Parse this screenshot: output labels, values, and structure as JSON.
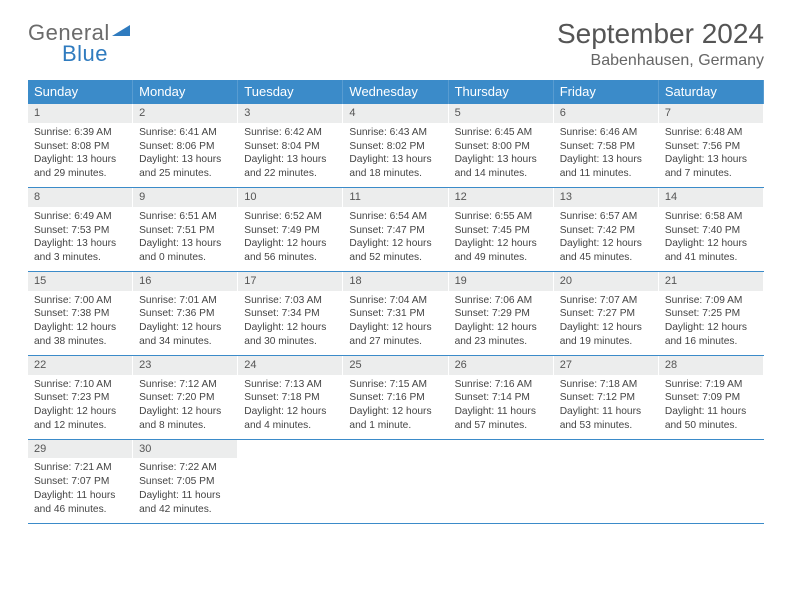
{
  "logo": {
    "text1": "General",
    "text2": "Blue",
    "triangle_color": "#2f7bbf"
  },
  "header": {
    "month_title": "September 2024",
    "location": "Babenhausen, Germany"
  },
  "colors": {
    "header_bg": "#3b8bc9",
    "header_text": "#ffffff",
    "daynum_bg": "#eceded",
    "row_border": "#3b8bc9",
    "body_text": "#444444"
  },
  "day_names": [
    "Sunday",
    "Monday",
    "Tuesday",
    "Wednesday",
    "Thursday",
    "Friday",
    "Saturday"
  ],
  "weeks": [
    [
      {
        "n": "1",
        "sr": "Sunrise: 6:39 AM",
        "ss": "Sunset: 8:08 PM",
        "d1": "Daylight: 13 hours",
        "d2": "and 29 minutes."
      },
      {
        "n": "2",
        "sr": "Sunrise: 6:41 AM",
        "ss": "Sunset: 8:06 PM",
        "d1": "Daylight: 13 hours",
        "d2": "and 25 minutes."
      },
      {
        "n": "3",
        "sr": "Sunrise: 6:42 AM",
        "ss": "Sunset: 8:04 PM",
        "d1": "Daylight: 13 hours",
        "d2": "and 22 minutes."
      },
      {
        "n": "4",
        "sr": "Sunrise: 6:43 AM",
        "ss": "Sunset: 8:02 PM",
        "d1": "Daylight: 13 hours",
        "d2": "and 18 minutes."
      },
      {
        "n": "5",
        "sr": "Sunrise: 6:45 AM",
        "ss": "Sunset: 8:00 PM",
        "d1": "Daylight: 13 hours",
        "d2": "and 14 minutes."
      },
      {
        "n": "6",
        "sr": "Sunrise: 6:46 AM",
        "ss": "Sunset: 7:58 PM",
        "d1": "Daylight: 13 hours",
        "d2": "and 11 minutes."
      },
      {
        "n": "7",
        "sr": "Sunrise: 6:48 AM",
        "ss": "Sunset: 7:56 PM",
        "d1": "Daylight: 13 hours",
        "d2": "and 7 minutes."
      }
    ],
    [
      {
        "n": "8",
        "sr": "Sunrise: 6:49 AM",
        "ss": "Sunset: 7:53 PM",
        "d1": "Daylight: 13 hours",
        "d2": "and 3 minutes."
      },
      {
        "n": "9",
        "sr": "Sunrise: 6:51 AM",
        "ss": "Sunset: 7:51 PM",
        "d1": "Daylight: 13 hours",
        "d2": "and 0 minutes."
      },
      {
        "n": "10",
        "sr": "Sunrise: 6:52 AM",
        "ss": "Sunset: 7:49 PM",
        "d1": "Daylight: 12 hours",
        "d2": "and 56 minutes."
      },
      {
        "n": "11",
        "sr": "Sunrise: 6:54 AM",
        "ss": "Sunset: 7:47 PM",
        "d1": "Daylight: 12 hours",
        "d2": "and 52 minutes."
      },
      {
        "n": "12",
        "sr": "Sunrise: 6:55 AM",
        "ss": "Sunset: 7:45 PM",
        "d1": "Daylight: 12 hours",
        "d2": "and 49 minutes."
      },
      {
        "n": "13",
        "sr": "Sunrise: 6:57 AM",
        "ss": "Sunset: 7:42 PM",
        "d1": "Daylight: 12 hours",
        "d2": "and 45 minutes."
      },
      {
        "n": "14",
        "sr": "Sunrise: 6:58 AM",
        "ss": "Sunset: 7:40 PM",
        "d1": "Daylight: 12 hours",
        "d2": "and 41 minutes."
      }
    ],
    [
      {
        "n": "15",
        "sr": "Sunrise: 7:00 AM",
        "ss": "Sunset: 7:38 PM",
        "d1": "Daylight: 12 hours",
        "d2": "and 38 minutes."
      },
      {
        "n": "16",
        "sr": "Sunrise: 7:01 AM",
        "ss": "Sunset: 7:36 PM",
        "d1": "Daylight: 12 hours",
        "d2": "and 34 minutes."
      },
      {
        "n": "17",
        "sr": "Sunrise: 7:03 AM",
        "ss": "Sunset: 7:34 PM",
        "d1": "Daylight: 12 hours",
        "d2": "and 30 minutes."
      },
      {
        "n": "18",
        "sr": "Sunrise: 7:04 AM",
        "ss": "Sunset: 7:31 PM",
        "d1": "Daylight: 12 hours",
        "d2": "and 27 minutes."
      },
      {
        "n": "19",
        "sr": "Sunrise: 7:06 AM",
        "ss": "Sunset: 7:29 PM",
        "d1": "Daylight: 12 hours",
        "d2": "and 23 minutes."
      },
      {
        "n": "20",
        "sr": "Sunrise: 7:07 AM",
        "ss": "Sunset: 7:27 PM",
        "d1": "Daylight: 12 hours",
        "d2": "and 19 minutes."
      },
      {
        "n": "21",
        "sr": "Sunrise: 7:09 AM",
        "ss": "Sunset: 7:25 PM",
        "d1": "Daylight: 12 hours",
        "d2": "and 16 minutes."
      }
    ],
    [
      {
        "n": "22",
        "sr": "Sunrise: 7:10 AM",
        "ss": "Sunset: 7:23 PM",
        "d1": "Daylight: 12 hours",
        "d2": "and 12 minutes."
      },
      {
        "n": "23",
        "sr": "Sunrise: 7:12 AM",
        "ss": "Sunset: 7:20 PM",
        "d1": "Daylight: 12 hours",
        "d2": "and 8 minutes."
      },
      {
        "n": "24",
        "sr": "Sunrise: 7:13 AM",
        "ss": "Sunset: 7:18 PM",
        "d1": "Daylight: 12 hours",
        "d2": "and 4 minutes."
      },
      {
        "n": "25",
        "sr": "Sunrise: 7:15 AM",
        "ss": "Sunset: 7:16 PM",
        "d1": "Daylight: 12 hours",
        "d2": "and 1 minute."
      },
      {
        "n": "26",
        "sr": "Sunrise: 7:16 AM",
        "ss": "Sunset: 7:14 PM",
        "d1": "Daylight: 11 hours",
        "d2": "and 57 minutes."
      },
      {
        "n": "27",
        "sr": "Sunrise: 7:18 AM",
        "ss": "Sunset: 7:12 PM",
        "d1": "Daylight: 11 hours",
        "d2": "and 53 minutes."
      },
      {
        "n": "28",
        "sr": "Sunrise: 7:19 AM",
        "ss": "Sunset: 7:09 PM",
        "d1": "Daylight: 11 hours",
        "d2": "and 50 minutes."
      }
    ],
    [
      {
        "n": "29",
        "sr": "Sunrise: 7:21 AM",
        "ss": "Sunset: 7:07 PM",
        "d1": "Daylight: 11 hours",
        "d2": "and 46 minutes."
      },
      {
        "n": "30",
        "sr": "Sunrise: 7:22 AM",
        "ss": "Sunset: 7:05 PM",
        "d1": "Daylight: 11 hours",
        "d2": "and 42 minutes."
      },
      null,
      null,
      null,
      null,
      null
    ]
  ]
}
